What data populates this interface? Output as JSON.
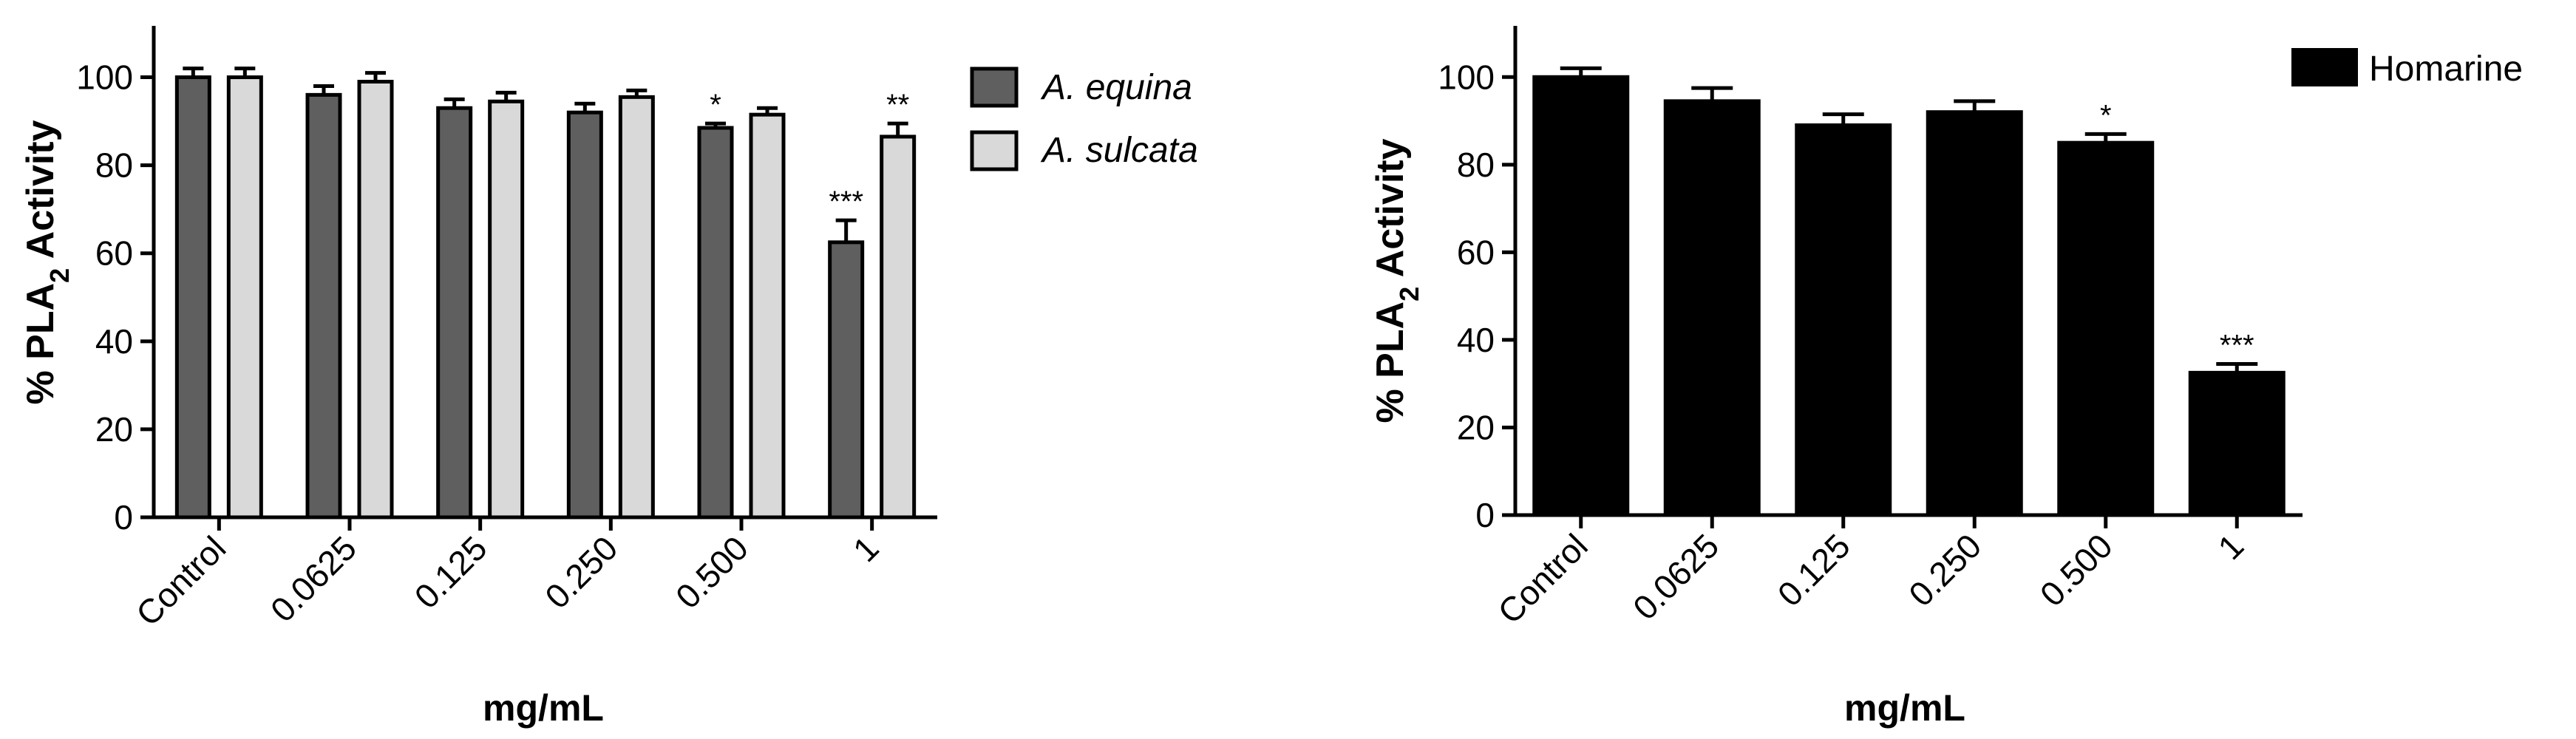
{
  "chart_data": [
    {
      "type": "bar",
      "ylabel_main": "% PLA",
      "ylabel_sub": "2",
      "ylabel_rest": " Activity",
      "xlabel": "mg/mL",
      "categories": [
        "Control",
        "0.0625",
        "0.125",
        "0.250",
        "0.500",
        "1"
      ],
      "ylim": [
        0,
        110
      ],
      "yticks": [
        0,
        20,
        40,
        60,
        80,
        100
      ],
      "legend_position": "top-right",
      "series": [
        {
          "name": "A. equina",
          "color": "#5f5f5f",
          "values": [
            100,
            96,
            93,
            92,
            88.5,
            62.5
          ],
          "errors": [
            2,
            2,
            2,
            2,
            1,
            5
          ],
          "significance": [
            "",
            "",
            "",
            "",
            "*",
            "***"
          ]
        },
        {
          "name": "A. sulcata",
          "color": "#d9d9d9",
          "values": [
            100,
            99,
            94.5,
            95.5,
            91.5,
            86.5
          ],
          "errors": [
            2,
            2,
            2,
            1.5,
            1.5,
            3
          ],
          "significance": [
            "",
            "",
            "",
            "",
            "",
            "**"
          ]
        }
      ]
    },
    {
      "type": "bar",
      "ylabel_main": "% PLA",
      "ylabel_sub": "2",
      "ylabel_rest": " Activity",
      "xlabel": "mg/mL",
      "categories": [
        "Control",
        "0.0625",
        "0.125",
        "0.250",
        "0.500",
        "1"
      ],
      "ylim": [
        0,
        110
      ],
      "yticks": [
        0,
        20,
        40,
        60,
        80,
        100
      ],
      "legend_position": "top-right",
      "series": [
        {
          "name": "Homarine",
          "color": "#000000",
          "values": [
            100,
            94.5,
            89,
            92,
            85,
            32.5
          ],
          "errors": [
            2,
            3,
            2.5,
            2.5,
            2,
            2
          ],
          "significance": [
            "",
            "",
            "",
            "",
            "*",
            "***"
          ]
        }
      ]
    }
  ]
}
